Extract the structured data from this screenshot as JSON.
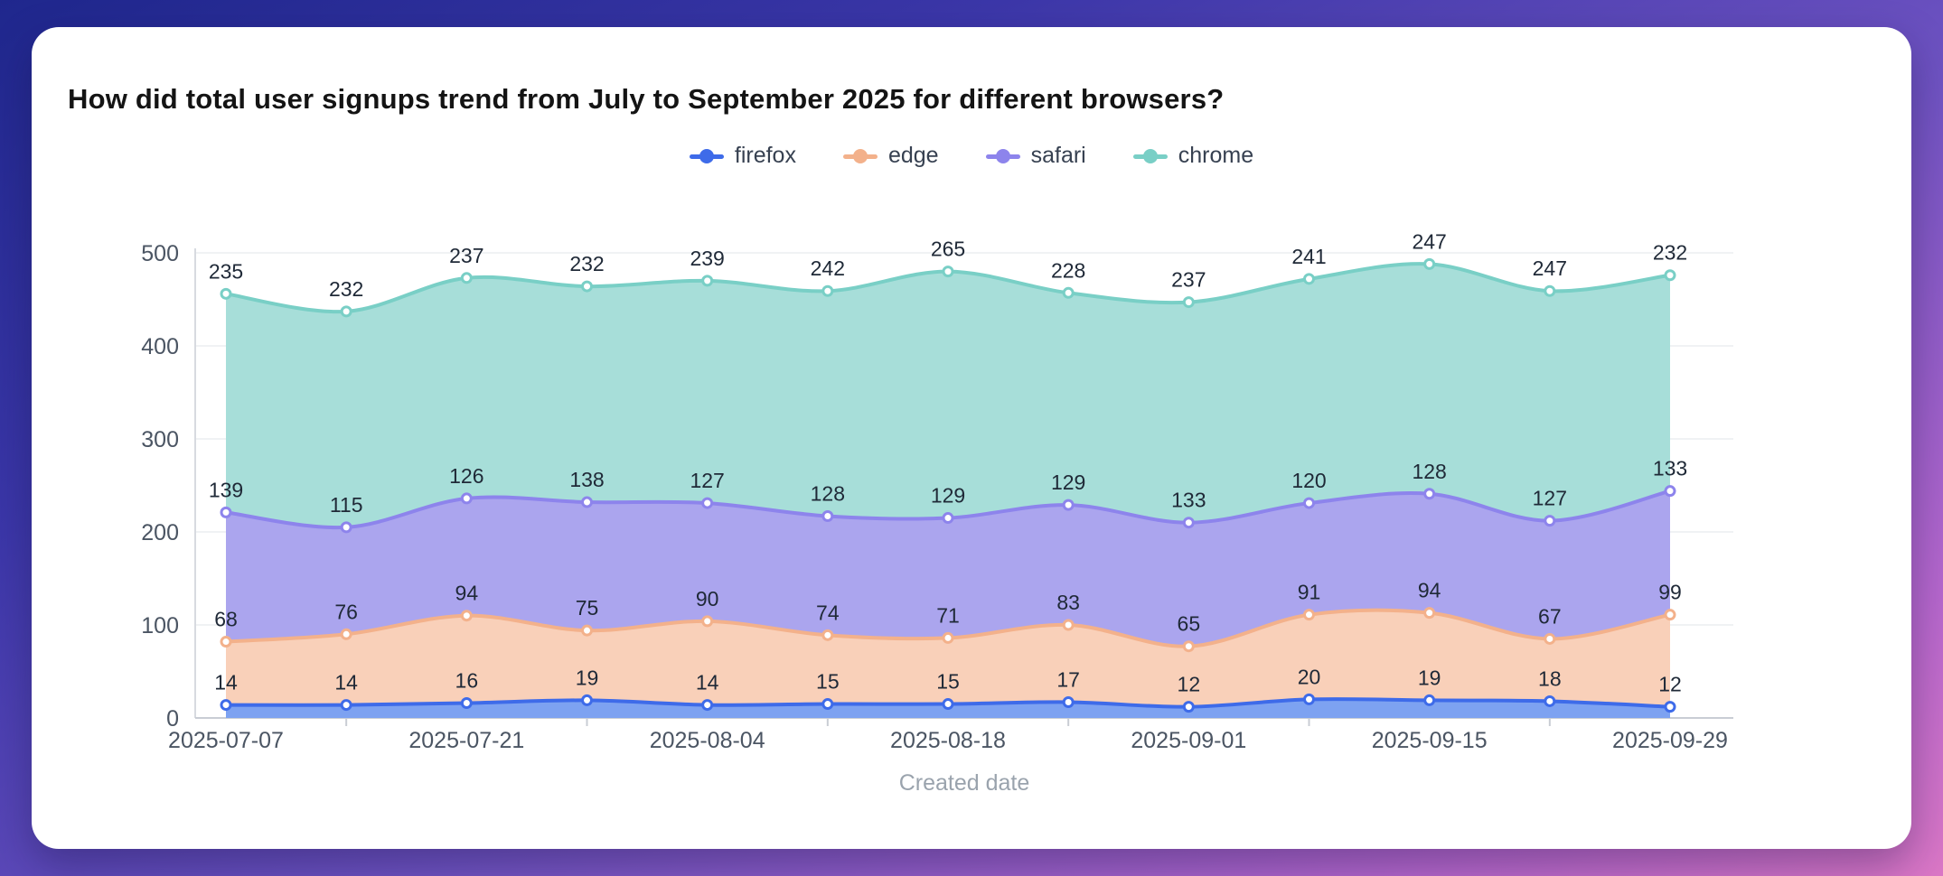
{
  "page": {
    "background_gradient": [
      "#1f278d",
      "#6f53c2",
      "#db77c6"
    ],
    "card_background": "#ffffff"
  },
  "chart_data": {
    "type": "area",
    "stacked": true,
    "smooth": true,
    "title": "How did total user signups trend from July to September 2025 for different browsers?",
    "xlabel": "Created date",
    "ylabel": "",
    "ylim": [
      0,
      500
    ],
    "y_ticks": [
      0,
      100,
      200,
      300,
      400,
      500
    ],
    "grid": true,
    "legend_position": "top-center",
    "x": [
      "2025-07-07",
      "2025-07-14",
      "2025-07-21",
      "2025-07-28",
      "2025-08-04",
      "2025-08-11",
      "2025-08-18",
      "2025-08-25",
      "2025-09-01",
      "2025-09-08",
      "2025-09-15",
      "2025-09-22",
      "2025-09-29"
    ],
    "x_tick_labels": [
      "2025-07-07",
      "2025-07-21",
      "2025-08-04",
      "2025-08-18",
      "2025-09-01",
      "2025-09-15",
      "2025-09-29"
    ],
    "series": [
      {
        "name": "firefox",
        "line_color": "#3e6be9",
        "fill_color": "#7da2f1",
        "values": [
          14,
          14,
          16,
          19,
          14,
          15,
          15,
          17,
          12,
          20,
          19,
          18,
          12
        ]
      },
      {
        "name": "edge",
        "line_color": "#f3b18b",
        "fill_color": "#f9d0b9",
        "values": [
          68,
          76,
          94,
          75,
          90,
          74,
          71,
          83,
          65,
          91,
          94,
          67,
          99
        ]
      },
      {
        "name": "safari",
        "line_color": "#8d84ec",
        "fill_color": "#aba5ee",
        "values": [
          139,
          115,
          126,
          138,
          127,
          128,
          129,
          129,
          133,
          120,
          128,
          127,
          133
        ]
      },
      {
        "name": "chrome",
        "line_color": "#79cfc6",
        "fill_color": "#a7ded9",
        "values": [
          235,
          232,
          237,
          232,
          239,
          242,
          265,
          228,
          237,
          241,
          247,
          247,
          232
        ]
      }
    ],
    "style": {
      "axis_label_color": "#4b5563",
      "data_label_color": "#1f2937",
      "axis_line_color": "#c9cdd4",
      "grid_line_color": "#ecedf0",
      "xlabel_color": "#9aa3ad"
    }
  }
}
